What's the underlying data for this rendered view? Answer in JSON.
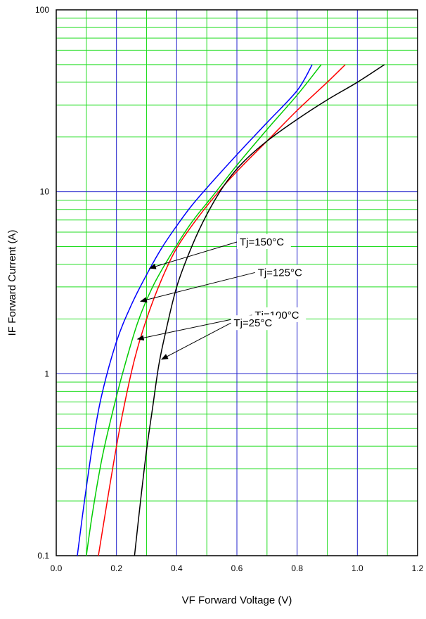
{
  "chart_data": {
    "type": "line",
    "title": "",
    "xlabel": "VF   Forward Voltage  (V)",
    "ylabel": "IF    Forward Current  (A)",
    "xlim": [
      0.0,
      1.2
    ],
    "ylim": [
      0.1,
      100
    ],
    "y_scale": "log",
    "grid": true,
    "grid_colors": {
      "major": "#2222cc",
      "minor": "#22dd22"
    },
    "x_ticks": [
      "0.0",
      "0.2",
      "0.4",
      "0.6",
      "0.8",
      "1.0",
      "1.2"
    ],
    "x_tick_values": [
      0.0,
      0.2,
      0.4,
      0.6,
      0.8,
      1.0,
      1.2
    ],
    "y_ticks": [
      "0.1",
      "1",
      "10",
      "100"
    ],
    "y_tick_values": [
      0.1,
      1,
      10,
      100
    ],
    "series": [
      {
        "name": "Tj=150°C",
        "color": "#0000ff",
        "x": [
          0.07,
          0.09,
          0.12,
          0.15,
          0.2,
          0.25,
          0.3,
          0.35,
          0.4,
          0.45,
          0.5,
          0.6,
          0.7,
          0.8,
          0.85
        ],
        "y": [
          0.1,
          0.18,
          0.4,
          0.75,
          1.5,
          2.4,
          3.5,
          4.9,
          6.5,
          8.4,
          10.5,
          16.0,
          24.0,
          36.0,
          50.0
        ]
      },
      {
        "name": "Tj=125°C",
        "color": "#00cc00",
        "x": [
          0.1,
          0.12,
          0.15,
          0.18,
          0.22,
          0.27,
          0.32,
          0.38,
          0.45,
          0.52,
          0.6,
          0.7,
          0.8,
          0.88
        ],
        "y": [
          0.1,
          0.17,
          0.33,
          0.55,
          1.0,
          1.9,
          3.0,
          4.5,
          6.8,
          9.5,
          14.0,
          22.0,
          34.0,
          50.0
        ]
      },
      {
        "name": "Tj=100°C",
        "color": "#ff0000",
        "x": [
          0.14,
          0.16,
          0.19,
          0.22,
          0.26,
          0.3,
          0.35,
          0.4,
          0.47,
          0.55,
          0.62,
          0.7,
          0.8,
          0.9,
          0.96
        ],
        "y": [
          0.1,
          0.16,
          0.32,
          0.6,
          1.2,
          2.0,
          3.3,
          4.9,
          7.2,
          10.5,
          14.0,
          19.0,
          28.0,
          40.0,
          50.0
        ]
      },
      {
        "name": "Tj=25°C",
        "color": "#000000",
        "x": [
          0.26,
          0.28,
          0.3,
          0.32,
          0.34,
          0.36,
          0.4,
          0.45,
          0.5,
          0.56,
          0.62,
          0.7,
          0.8,
          0.9,
          1.0,
          1.09
        ],
        "y": [
          0.1,
          0.2,
          0.38,
          0.65,
          1.1,
          1.6,
          3.0,
          5.0,
          7.5,
          11.0,
          14.5,
          19.0,
          25.0,
          32.0,
          40.0,
          50.0
        ]
      }
    ],
    "annotations": [
      {
        "text": "Tj=150°C",
        "series": "Tj=150°C",
        "point": [
          0.31,
          3.8
        ],
        "label_at": [
          0.6,
          5.3
        ]
      },
      {
        "text": "Tj=125°C",
        "series": "Tj=125°C",
        "point": [
          0.28,
          2.5
        ],
        "label_at": [
          0.66,
          3.6
        ]
      },
      {
        "text": "Tj=100°C",
        "series": "Tj=100°C",
        "point": [
          0.27,
          1.55
        ],
        "label_at": [
          0.65,
          2.1
        ]
      },
      {
        "text": "Tj=25°C",
        "series": "Tj=25°C",
        "point": [
          0.35,
          1.2
        ],
        "label_at": [
          0.58,
          1.9
        ]
      }
    ]
  }
}
